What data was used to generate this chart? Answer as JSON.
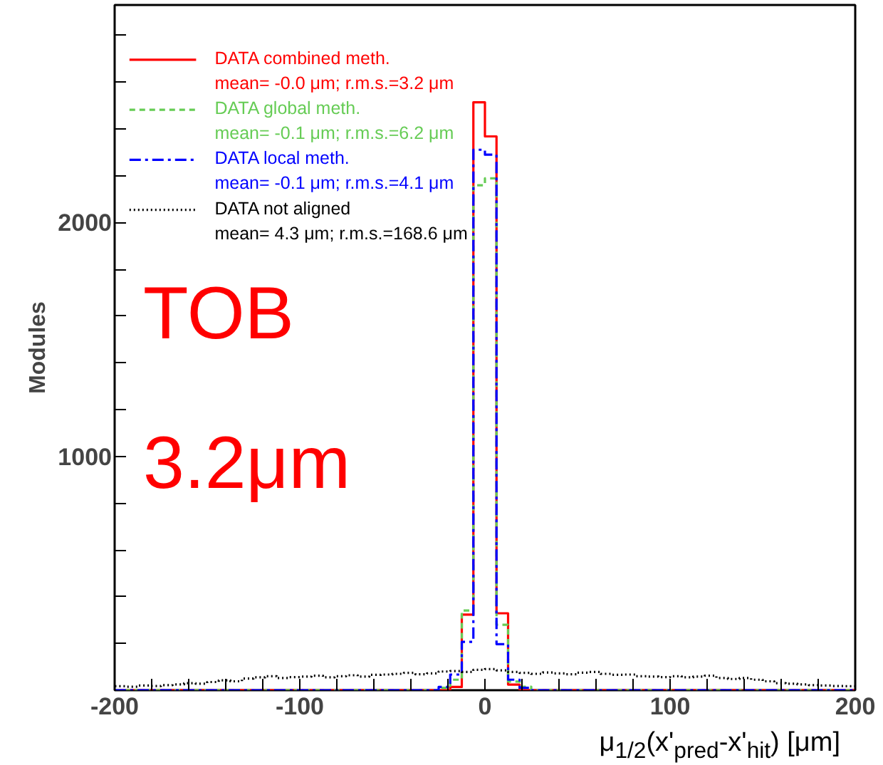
{
  "chart_data": {
    "type": "histogram",
    "ylabel": "Modules",
    "xlabel": "μ$_{1/2}$(x'$_{pred}$-x'$_{hit}$) [μm]",
    "annotations": [
      "TOB",
      "3.2μm"
    ],
    "bins": [
      -200,
      -193.75,
      -187.5,
      -181.25,
      -175,
      -168.75,
      -162.5,
      -156.25,
      -150,
      -143.75,
      -137.5,
      -131.25,
      -125,
      -118.75,
      -112.5,
      -106.25,
      -100,
      -93.75,
      -87.5,
      -81.25,
      -75,
      -68.75,
      -62.5,
      -56.25,
      -50,
      -43.75,
      -37.5,
      -31.25,
      -25,
      -18.75,
      -12.5,
      -6.25,
      0,
      6.25,
      12.5,
      18.75,
      25,
      31.25,
      37.5,
      43.75,
      50,
      56.25,
      62.5,
      68.75,
      75,
      81.25,
      87.5,
      93.75,
      100,
      106.25,
      112.5,
      118.75,
      125,
      131.25,
      137.5,
      143.75,
      150,
      156.25,
      162.5,
      168.75,
      175,
      181.25,
      187.5,
      193.75,
      200
    ],
    "series": [
      {
        "name": "DATA combined meth.\nmean= -0.0 μm; r.m.s.=3.2 μm",
        "color": "#ff0000",
        "line_style": "solid",
        "values": [
          0,
          0,
          0,
          0,
          0,
          0,
          0,
          0,
          0,
          0,
          0,
          0,
          0,
          0,
          0,
          0,
          0,
          0,
          0,
          0,
          0,
          0,
          0,
          0,
          0,
          0,
          0,
          0,
          0,
          14,
          323,
          2514,
          2368,
          329,
          24,
          0,
          0,
          0,
          0,
          0,
          0,
          0,
          0,
          0,
          0,
          0,
          0,
          0,
          0,
          0,
          0,
          0,
          0,
          0,
          0,
          0,
          0,
          0,
          0,
          0,
          0,
          0,
          0,
          0
        ]
      },
      {
        "name": "DATA global meth.\nmean= -0.1 μm; r.m.s.=6.2 μm",
        "color": "#66cc55",
        "line_style": "dashed",
        "values": [
          0,
          0,
          0,
          0,
          0,
          0,
          0,
          0,
          0,
          0,
          0,
          0,
          0,
          0,
          0,
          0,
          0,
          0,
          0,
          0,
          0,
          0,
          0,
          0,
          0,
          0,
          0,
          0,
          10,
          45,
          341,
          2159,
          2189,
          280,
          37,
          15,
          0,
          0,
          0,
          0,
          0,
          0,
          0,
          0,
          0,
          0,
          0,
          0,
          0,
          0,
          0,
          0,
          0,
          0,
          0,
          0,
          0,
          0,
          0,
          0,
          0,
          0,
          0,
          0
        ]
      },
      {
        "name": "DATA local meth.\nmean= -0.1 μm; r.m.s.=4.1 μm",
        "color": "#0000ff",
        "line_style": "dashdot",
        "values": [
          0,
          0,
          0,
          0,
          0,
          0,
          0,
          0,
          0,
          0,
          0,
          0,
          0,
          0,
          0,
          0,
          0,
          0,
          0,
          0,
          0,
          0,
          0,
          0,
          0,
          0,
          0,
          0,
          14,
          67,
          207,
          2311,
          2290,
          197,
          45,
          10,
          0,
          0,
          0,
          0,
          0,
          0,
          0,
          0,
          0,
          0,
          0,
          0,
          0,
          0,
          0,
          0,
          0,
          0,
          0,
          0,
          0,
          0,
          0,
          0,
          0,
          0,
          0,
          0
        ]
      },
      {
        "name": "DATA not aligned\nmean= 4.3 μm; r.m.s.=168.6 μm",
        "color": "#000000",
        "line_style": "dotted",
        "values": [
          17,
          15,
          20,
          18,
          22,
          25,
          30,
          28,
          35,
          42,
          38,
          50,
          55,
          60,
          52,
          56,
          58,
          62,
          55,
          60,
          64,
          58,
          66,
          67,
          70,
          74,
          68,
          72,
          80,
          82,
          78,
          87,
          90,
          85,
          78,
          74,
          70,
          76,
          72,
          68,
          75,
          78,
          70,
          66,
          67,
          60,
          58,
          56,
          60,
          55,
          58,
          62,
          52,
          48,
          52,
          45,
          38,
          30,
          28,
          25,
          22,
          20,
          18,
          17
        ]
      }
    ],
    "xlim": [
      -200,
      200
    ],
    "xticks": [
      -200,
      {
        "value": -180,
        "label": null
      },
      {
        "value": -160,
        "label": null
      },
      {
        "value": -140,
        "label": null
      },
      {
        "value": -120,
        "label": null
      },
      -100,
      {
        "value": -80,
        "label": null
      },
      {
        "value": -60,
        "label": null
      },
      {
        "value": -40,
        "label": null
      },
      {
        "value": -20,
        "label": null
      },
      0,
      {
        "value": 20,
        "label": null
      },
      {
        "value": 40,
        "label": null
      },
      {
        "value": 60,
        "label": null
      },
      {
        "value": 80,
        "label": null
      },
      100,
      {
        "value": 120,
        "label": null
      },
      {
        "value": 140,
        "label": null
      },
      {
        "value": 160,
        "label": null
      },
      {
        "value": 180,
        "label": null
      },
      200
    ],
    "ylim": [
      0,
      2930
    ],
    "yticks": [
      {
        "value": 200,
        "label": null
      },
      {
        "value": 400,
        "label": null
      },
      {
        "value": 600,
        "label": null
      },
      {
        "value": 800,
        "label": null
      },
      1000,
      {
        "value": 1200,
        "label": null
      },
      {
        "value": 1400,
        "label": null
      },
      {
        "value": 1600,
        "label": null
      },
      {
        "value": 1800,
        "label": null
      },
      2000,
      {
        "value": 2200,
        "label": null
      },
      {
        "value": 2400,
        "label": null
      },
      {
        "value": 2600,
        "label": null
      },
      {
        "value": 2800,
        "label": null
      }
    ],
    "grid": false,
    "legend": "top left"
  }
}
